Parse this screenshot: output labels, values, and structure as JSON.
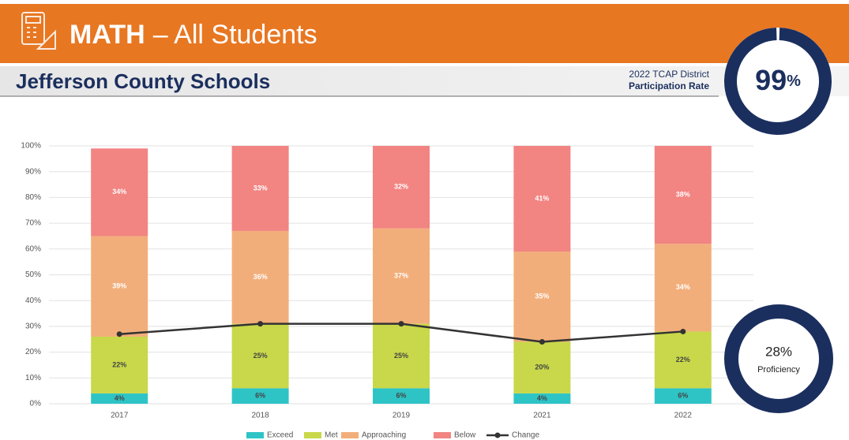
{
  "header": {
    "subject": "MATH",
    "subtitle": "– All Students",
    "district": "Jefferson County Schools",
    "participation": {
      "line1": "2022 TCAP District",
      "line2": "Participation Rate",
      "value": 99,
      "label": "99",
      "suffix": "%"
    },
    "proficiency": {
      "label": "28%",
      "caption": "Proficiency"
    }
  },
  "chart_data": {
    "type": "bar",
    "stacked": true,
    "categories": [
      "2017",
      "2018",
      "2019",
      "2021",
      "2022"
    ],
    "ylim": [
      0,
      100
    ],
    "yticks": [
      {
        "value": 0,
        "label": "0%"
      },
      {
        "value": 10,
        "label": "10%"
      },
      {
        "value": 20,
        "label": "20%"
      },
      {
        "value": 30,
        "label": "30%"
      },
      {
        "value": 40,
        "label": "40%"
      },
      {
        "value": 50,
        "label": "50%"
      },
      {
        "value": 60,
        "label": "60%"
      },
      {
        "value": 70,
        "label": "70%"
      },
      {
        "value": 80,
        "label": "80%"
      },
      {
        "value": 90,
        "label": "90%"
      },
      {
        "value": 100,
        "label": "100%"
      }
    ],
    "grid": true,
    "series": [
      {
        "name": "Exceed",
        "color": "#2ec4c6",
        "values": [
          4,
          6,
          6,
          4,
          6
        ],
        "value_labels": [
          "4%",
          "6%",
          "6%",
          "4%",
          "6%"
        ]
      },
      {
        "name": "Met",
        "color": "#c8d84a",
        "values": [
          22,
          25,
          25,
          20,
          22
        ],
        "value_labels": [
          "22%",
          "25%",
          "25%",
          "20%",
          "22%"
        ]
      },
      {
        "name": "Approaching",
        "color": "#f2ae7a",
        "values": [
          39,
          36,
          37,
          35,
          34
        ],
        "value_labels": [
          "39%",
          "36%",
          "37%",
          "35%",
          "34%"
        ]
      },
      {
        "name": "Below",
        "color": "#f28482",
        "values": [
          34,
          33,
          32,
          41,
          38
        ],
        "value_labels": [
          "34%",
          "33%",
          "32%",
          "41%",
          "38%"
        ]
      },
      {
        "name": "Change",
        "type": "line",
        "color": "#333333",
        "values": [
          27,
          31,
          31,
          24,
          28
        ]
      }
    ]
  }
}
